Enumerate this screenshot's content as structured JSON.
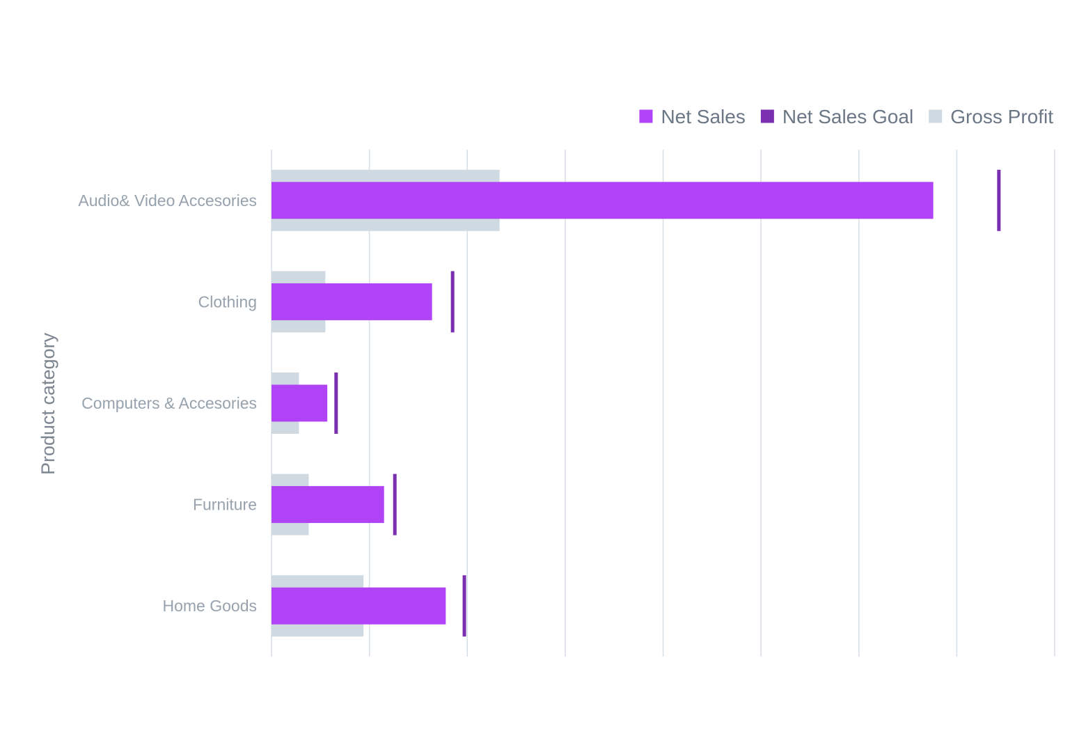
{
  "chart_data": {
    "type": "bar",
    "orientation": "horizontal",
    "title": "",
    "xlabel": "",
    "ylabel": "Product category",
    "categories": [
      "Audio& Video Accesories",
      "Clothing",
      "Computers & Accesories",
      "Furniture",
      "Home Goods"
    ],
    "series": [
      {
        "name": "Net Sales",
        "color": "#b043f5",
        "values": [
          6.76,
          1.64,
          0.57,
          1.15,
          1.78
        ]
      },
      {
        "name": "Net Sales Goal",
        "color": "#7a2fb0",
        "values": [
          7.43,
          1.85,
          0.66,
          1.26,
          1.97
        ]
      },
      {
        "name": "Gross Profit",
        "color": "#cfd9e1",
        "values": [
          2.33,
          0.55,
          0.28,
          0.38,
          0.94
        ]
      }
    ],
    "xlim": [
      0,
      8
    ],
    "grid": true,
    "legend_position": "top-right",
    "tick_labels_visible": false
  }
}
